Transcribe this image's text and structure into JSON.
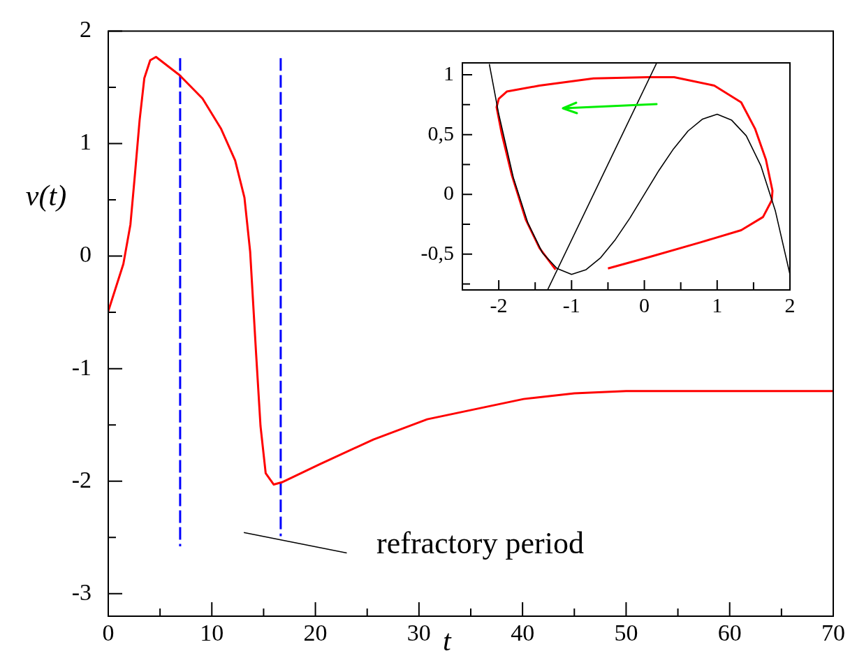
{
  "chart_data": [
    {
      "type": "line",
      "xlabel": "t",
      "ylabel": "v(t)",
      "xlim": [
        0,
        70
      ],
      "ylim": [
        -3.2,
        2
      ],
      "xticks": [
        0,
        {
          "value": 5,
          "label": null
        },
        10,
        {
          "value": 15,
          "label": null
        },
        20,
        {
          "value": 25,
          "label": null
        },
        30,
        {
          "value": 35,
          "label": null
        },
        40,
        {
          "value": 45,
          "label": null
        },
        50,
        {
          "value": 55,
          "label": null
        },
        60,
        {
          "value": 65,
          "label": null
        },
        70
      ],
      "yticks": [
        -3,
        {
          "value": -2.5,
          "label": null
        },
        -2,
        {
          "value": -1.5,
          "label": null
        },
        -1,
        {
          "value": -0.5,
          "label": null
        },
        0,
        {
          "value": 0.5,
          "label": null
        },
        1,
        {
          "value": 1.5,
          "label": null
        },
        2
      ],
      "annotations": [
        "refractory period"
      ],
      "series": [
        {
          "color": "#ff0000",
          "x": [
            0,
            1.46,
            2.14,
            2.58,
            3.03,
            3.48,
            4.05,
            4.61,
            6.86,
            9.1,
            10.9,
            12.25,
            13.15,
            13.7,
            14.27,
            14.7,
            15.2,
            15.98,
            16.77,
            20.4,
            25.6,
            30.8,
            40.1,
            45,
            50,
            60,
            70
          ],
          "values": [
            -0.49,
            -0.07,
            0.28,
            0.73,
            1.21,
            1.58,
            1.74,
            1.77,
            1.61,
            1.4,
            1.13,
            0.85,
            0.52,
            0.04,
            -0.86,
            -1.51,
            -1.93,
            -2.03,
            -2.01,
            -1.85,
            -1.63,
            -1.45,
            -1.27,
            -1.22,
            -1.2,
            -1.2,
            -1.2
          ]
        },
        {
          "color": "#0000ff",
          "line_style": "dashed",
          "x": [
            6.94,
            6.94
          ],
          "values": [
            1.75,
            -2.57
          ]
        },
        {
          "color": "#0000ff",
          "line_style": "dashed",
          "x": [
            16.65,
            16.65
          ],
          "values": [
            1.75,
            -2.48
          ]
        }
      ]
    },
    {
      "type": "line",
      "xlim": [
        -2.5,
        2
      ],
      "ylim": [
        -0.8,
        1.1
      ],
      "xticks": [
        -2,
        {
          "value": -1.5,
          "label": null
        },
        -1,
        {
          "value": -0.5,
          "label": null
        },
        0,
        {
          "value": 0.5,
          "label": null
        },
        1,
        {
          "value": 1.5,
          "label": null
        },
        2
      ],
      "yticks": [
        {
          "value": -0.75,
          "label": null
        },
        {
          "value": -0.5,
          "label": "-0,5"
        },
        {
          "value": -0.25,
          "label": null
        },
        0,
        {
          "value": 0.25,
          "label": null
        },
        {
          "value": 0.5,
          "label": "0,5"
        },
        {
          "value": 0.75,
          "label": null
        },
        1
      ],
      "series": [
        {
          "color": "#000000",
          "x": [
            -2.13,
            -2,
            -1.8,
            -1.6,
            -1.4,
            -1.2,
            -1,
            -0.8,
            -0.6,
            -0.4,
            -0.2,
            0,
            0.2,
            0.4,
            0.6,
            0.8,
            1,
            1.2,
            1.4,
            1.6,
            1.8,
            2
          ],
          "values": [
            1.09,
            0.67,
            0.14,
            -0.24,
            -0.49,
            -0.62,
            -0.67,
            -0.63,
            -0.53,
            -0.38,
            -0.2,
            0,
            0.2,
            0.38,
            0.53,
            0.63,
            0.67,
            0.62,
            0.49,
            0.24,
            -0.14,
            -0.67
          ]
        },
        {
          "color": "#000000",
          "x": [
            -1.33,
            0.17
          ],
          "values": [
            -0.8,
            1.1
          ]
        },
        {
          "color": "#ff0000",
          "x": [
            -0.5,
            0.04,
            0.78,
            1.33,
            1.63,
            1.75,
            1.76,
            1.67,
            1.52,
            1.33,
            0.96,
            0.41,
            0.04,
            -0.7,
            -1.44,
            -1.89,
            -2,
            -2.03,
            -1.96,
            -1.82,
            -1.63,
            -1.44,
            -1.22
          ],
          "values": [
            -0.62,
            -0.53,
            -0.4,
            -0.3,
            -0.19,
            -0.05,
            0.03,
            0.29,
            0.55,
            0.77,
            0.91,
            0.98,
            0.98,
            0.97,
            0.91,
            0.86,
            0.8,
            0.73,
            0.51,
            0.16,
            -0.21,
            -0.45,
            -0.63
          ]
        }
      ]
    }
  ]
}
